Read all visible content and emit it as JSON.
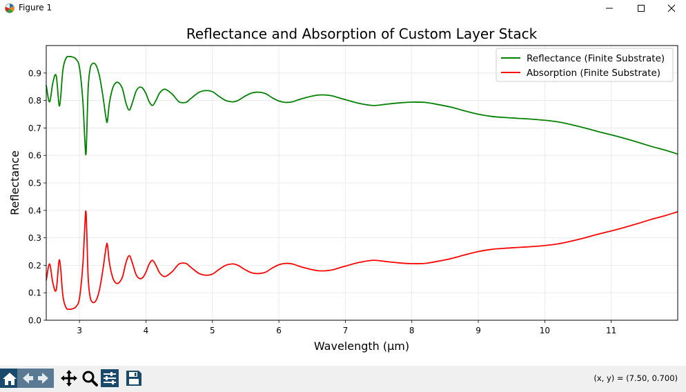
{
  "window": {
    "title": "Figure 1"
  },
  "toolbar": {
    "buttons": [
      "home-icon",
      "back-icon",
      "forward-icon",
      "pan-icon",
      "zoom-icon",
      "configure-subplots-icon",
      "save-icon"
    ],
    "coords_text": "(x, y) = (7.50, 0.700)"
  },
  "chart_data": {
    "type": "line",
    "title": "Reflectance and Absorption of Custom Layer Stack",
    "xlabel": "Wavelength (µm)",
    "ylabel": "Reflectance",
    "xlim": [
      2.5,
      12.0
    ],
    "ylim": [
      0.0,
      1.0
    ],
    "xticks": [
      "3",
      "4",
      "5",
      "6",
      "7",
      "8",
      "9",
      "10",
      "11"
    ],
    "yticks": [
      "0.0",
      "0.1",
      "0.2",
      "0.3",
      "0.4",
      "0.5",
      "0.6",
      "0.7",
      "0.8",
      "0.9"
    ],
    "grid": true,
    "legend_position": "top-right",
    "series": [
      {
        "name": "Reflectance (Finite Substrate)",
        "color": "#008000",
        "x": [
          2.5,
          2.55,
          2.6,
          2.65,
          2.7,
          2.75,
          2.8,
          2.85,
          2.9,
          2.95,
          3.0,
          3.05,
          3.08,
          3.1,
          3.13,
          3.16,
          3.2,
          3.25,
          3.3,
          3.35,
          3.4,
          3.42,
          3.45,
          3.5,
          3.55,
          3.6,
          3.65,
          3.7,
          3.75,
          3.8,
          3.85,
          3.9,
          3.95,
          4.0,
          4.05,
          4.1,
          4.15,
          4.2,
          4.25,
          4.3,
          4.4,
          4.5,
          4.6,
          4.65,
          4.7,
          4.8,
          4.9,
          5.0,
          5.1,
          5.2,
          5.3,
          5.35,
          5.4,
          5.5,
          5.6,
          5.7,
          5.8,
          5.9,
          6.0,
          6.1,
          6.2,
          6.3,
          6.4,
          6.5,
          6.6,
          6.7,
          6.8,
          6.9,
          7.0,
          7.2,
          7.4,
          7.5,
          7.6,
          7.8,
          8.0,
          8.2,
          8.4,
          8.6,
          8.8,
          9.0,
          9.2,
          9.4,
          9.6,
          9.8,
          10.0,
          10.2,
          10.4,
          10.6,
          10.8,
          11.0,
          11.2,
          11.4,
          11.6,
          11.8,
          12.0
        ],
        "y": [
          0.855,
          0.795,
          0.865,
          0.89,
          0.78,
          0.91,
          0.955,
          0.96,
          0.958,
          0.95,
          0.92,
          0.8,
          0.66,
          0.612,
          0.84,
          0.915,
          0.935,
          0.928,
          0.89,
          0.82,
          0.735,
          0.725,
          0.79,
          0.845,
          0.865,
          0.862,
          0.84,
          0.79,
          0.765,
          0.795,
          0.833,
          0.848,
          0.845,
          0.825,
          0.795,
          0.782,
          0.8,
          0.825,
          0.838,
          0.84,
          0.822,
          0.795,
          0.793,
          0.802,
          0.812,
          0.83,
          0.836,
          0.832,
          0.815,
          0.8,
          0.795,
          0.797,
          0.802,
          0.817,
          0.828,
          0.83,
          0.825,
          0.81,
          0.798,
          0.793,
          0.795,
          0.803,
          0.81,
          0.816,
          0.82,
          0.82,
          0.817,
          0.81,
          0.803,
          0.79,
          0.782,
          0.783,
          0.786,
          0.791,
          0.794,
          0.793,
          0.785,
          0.775,
          0.762,
          0.75,
          0.742,
          0.738,
          0.735,
          0.732,
          0.728,
          0.722,
          0.712,
          0.7,
          0.687,
          0.675,
          0.662,
          0.648,
          0.633,
          0.62,
          0.605
        ]
      },
      {
        "name": "Absorption (Finite Substrate)",
        "color": "#ff0000",
        "x": [
          2.5,
          2.55,
          2.6,
          2.65,
          2.7,
          2.75,
          2.8,
          2.85,
          2.9,
          2.95,
          3.0,
          3.05,
          3.08,
          3.1,
          3.13,
          3.16,
          3.2,
          3.25,
          3.3,
          3.35,
          3.4,
          3.42,
          3.45,
          3.5,
          3.55,
          3.6,
          3.65,
          3.7,
          3.75,
          3.8,
          3.85,
          3.9,
          3.95,
          4.0,
          4.05,
          4.1,
          4.15,
          4.2,
          4.25,
          4.3,
          4.4,
          4.5,
          4.6,
          4.65,
          4.7,
          4.8,
          4.9,
          5.0,
          5.1,
          5.2,
          5.3,
          5.35,
          5.4,
          5.5,
          5.6,
          5.7,
          5.8,
          5.9,
          6.0,
          6.1,
          6.2,
          6.3,
          6.4,
          6.5,
          6.6,
          6.7,
          6.8,
          6.9,
          7.0,
          7.2,
          7.4,
          7.5,
          7.6,
          7.8,
          8.0,
          8.2,
          8.4,
          8.6,
          8.8,
          9.0,
          9.2,
          9.4,
          9.6,
          9.8,
          10.0,
          10.2,
          10.4,
          10.6,
          10.8,
          11.0,
          11.2,
          11.4,
          11.6,
          11.8,
          12.0
        ],
        "y": [
          0.145,
          0.205,
          0.135,
          0.11,
          0.22,
          0.09,
          0.045,
          0.04,
          0.042,
          0.05,
          0.08,
          0.2,
          0.34,
          0.388,
          0.16,
          0.085,
          0.065,
          0.072,
          0.11,
          0.18,
          0.265,
          0.275,
          0.21,
          0.155,
          0.135,
          0.138,
          0.16,
          0.21,
          0.235,
          0.205,
          0.167,
          0.152,
          0.155,
          0.175,
          0.205,
          0.218,
          0.2,
          0.175,
          0.162,
          0.16,
          0.178,
          0.205,
          0.207,
          0.198,
          0.188,
          0.17,
          0.164,
          0.168,
          0.185,
          0.2,
          0.205,
          0.203,
          0.198,
          0.183,
          0.172,
          0.17,
          0.175,
          0.19,
          0.202,
          0.207,
          0.205,
          0.197,
          0.19,
          0.184,
          0.18,
          0.18,
          0.183,
          0.19,
          0.197,
          0.21,
          0.218,
          0.217,
          0.214,
          0.209,
          0.206,
          0.207,
          0.215,
          0.225,
          0.238,
          0.25,
          0.258,
          0.262,
          0.265,
          0.268,
          0.272,
          0.278,
          0.288,
          0.3,
          0.313,
          0.325,
          0.338,
          0.352,
          0.367,
          0.38,
          0.395
        ]
      }
    ]
  }
}
